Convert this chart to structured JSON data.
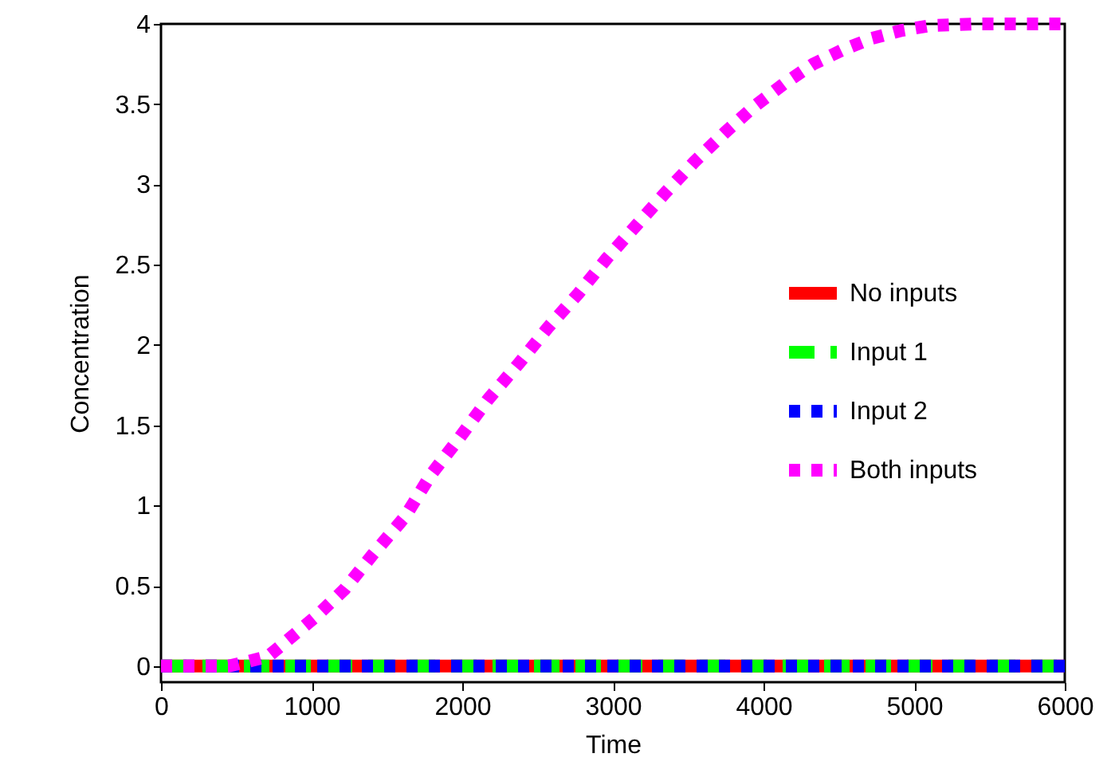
{
  "chart_data": {
    "type": "line",
    "xlabel": "Time",
    "ylabel": "Concentration",
    "xlim": [
      0,
      6000
    ],
    "ylim": [
      -0.1,
      4
    ],
    "xticks": [
      0,
      1000,
      2000,
      3000,
      4000,
      5000,
      6000
    ],
    "yticks": [
      0,
      0.5,
      1,
      1.5,
      2,
      2.5,
      3,
      3.5,
      4
    ],
    "legend": "right",
    "grid": false,
    "series": [
      {
        "name": "No inputs",
        "color": "#ff0000",
        "line_style": "solid",
        "x": [
          0,
          6000
        ],
        "values": [
          0,
          0
        ]
      },
      {
        "name": "Input 1",
        "color": "#00ff00",
        "line_style": "dashed",
        "x": [
          0,
          6000
        ],
        "values": [
          0,
          0
        ]
      },
      {
        "name": "Input 2",
        "color": "#0000ff",
        "line_style": "dotted",
        "x": [
          0,
          6000
        ],
        "values": [
          0,
          0
        ]
      },
      {
        "name": "Both inputs",
        "color": "#ff00ff",
        "line_style": "dotted",
        "x": [
          0,
          450,
          710,
          1030,
          1220,
          1410,
          1620,
          1790,
          1980,
          2170,
          2380,
          2570,
          2770,
          2960,
          3160,
          3350,
          3540,
          3740,
          3930,
          4140,
          4330,
          4530,
          4720,
          4920,
          5110,
          5400,
          5690,
          6000
        ],
        "values": [
          0,
          0,
          0.06,
          0.31,
          0.48,
          0.7,
          0.93,
          1.19,
          1.42,
          1.66,
          1.89,
          2.11,
          2.32,
          2.54,
          2.75,
          2.95,
          3.14,
          3.32,
          3.48,
          3.63,
          3.75,
          3.84,
          3.91,
          3.96,
          3.99,
          4,
          4,
          4
        ]
      }
    ]
  }
}
